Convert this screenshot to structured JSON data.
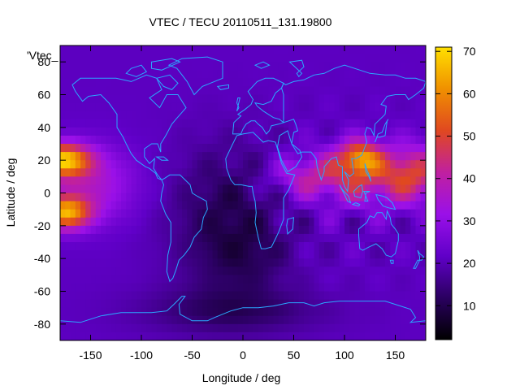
{
  "chart_data": {
    "type": "heatmap",
    "title": "VTEC / TECU 20110511_131.19800",
    "xlabel": "Longitude / deg",
    "ylabel": "Latitude / deg",
    "series_label": "'Vtec_",
    "xlim": [
      -180,
      180
    ],
    "ylim": [
      -90,
      90
    ],
    "x_ticks": [
      -150,
      -100,
      -50,
      0,
      50,
      100,
      150
    ],
    "y_ticks": [
      -80,
      -60,
      -40,
      -20,
      0,
      20,
      40,
      60,
      80
    ],
    "colorbar": {
      "range": [
        2,
        71
      ],
      "ticks": [
        10,
        20,
        30,
        40,
        50,
        60,
        70
      ],
      "palette": [
        "#000000",
        "#2a0060",
        "#6000c8",
        "#9a10e8",
        "#c020a0",
        "#e04820",
        "#f09000",
        "#ffe000"
      ]
    },
    "overlay": "coastlines",
    "colors": {
      "coastline": "#2aa8ff",
      "axis": "#000000"
    },
    "grid": false
  }
}
